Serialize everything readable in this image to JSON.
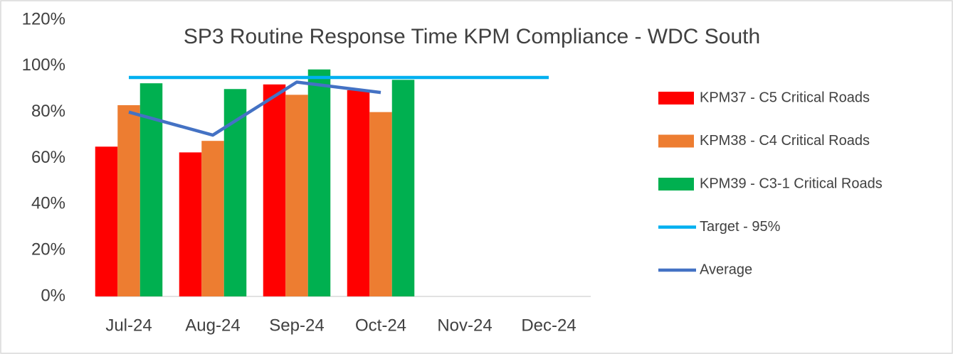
{
  "chart_data": {
    "type": "bar",
    "title": "SP3 Routine Response Time KPM Compliance   - WDC South",
    "categories": [
      "Jul-24",
      "Aug-24",
      "Sep-24",
      "Oct-24",
      "Nov-24",
      "Dec-24"
    ],
    "series": [
      {
        "name": "KPM37 - C5 Critical Roads",
        "color": "#ff0000",
        "values": [
          65,
          62.5,
          92,
          89.5,
          null,
          null
        ]
      },
      {
        "name": "KPM38 - C4 Critical Roads",
        "color": "#ed7d31",
        "values": [
          83,
          67.5,
          87.5,
          80,
          null,
          null
        ]
      },
      {
        "name": "KPM39 - C3-1 Critical Roads",
        "color": "#00b050",
        "values": [
          92.5,
          90,
          98.5,
          94,
          null,
          null
        ]
      },
      {
        "name": "Target - 95%",
        "color": "#00b0f0",
        "type": "line",
        "values": [
          95,
          95,
          95,
          95,
          95,
          95
        ]
      },
      {
        "name": "Average",
        "color": "#4472c4",
        "type": "line",
        "values": [
          80,
          70,
          93,
          88.5,
          null,
          null
        ]
      }
    ],
    "ylim": [
      0,
      120
    ],
    "yticks": [
      {
        "value": 0,
        "label": "0%"
      },
      {
        "value": 20,
        "label": "20%"
      },
      {
        "value": 40,
        "label": "40%"
      },
      {
        "value": 60,
        "label": "60%"
      },
      {
        "value": 80,
        "label": "80%"
      },
      {
        "value": 100,
        "label": "100%"
      },
      {
        "value": 120,
        "label": "120%"
      }
    ],
    "legend": "right"
  }
}
